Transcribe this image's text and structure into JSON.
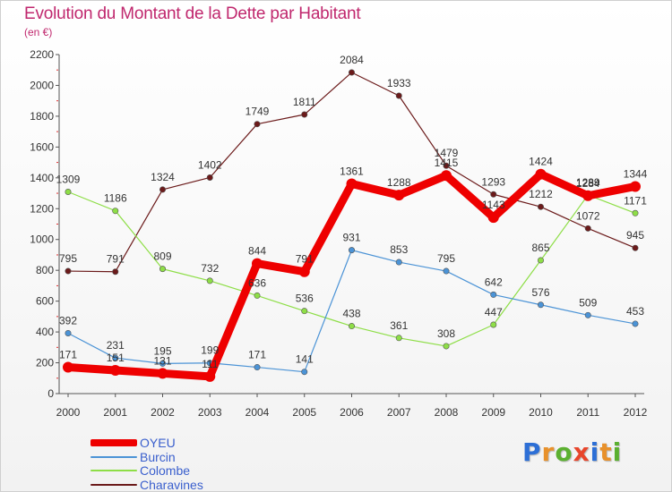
{
  "title": "Evolution du Montant de la Dette par Habitant",
  "subtitle": "(en €)",
  "logo": {
    "text": "Proxiti",
    "colors": [
      "#2d6fd6",
      "#e8912b",
      "#5bb030",
      "#e8452b",
      "#2d6fd6",
      "#e8912b",
      "#5bb030"
    ]
  },
  "chart_data": {
    "type": "line",
    "title": "Evolution du Montant de la Dette par Habitant",
    "subtitle": "(en €)",
    "x": [
      2000,
      2001,
      2002,
      2003,
      2004,
      2005,
      2006,
      2007,
      2008,
      2009,
      2010,
      2011,
      2012
    ],
    "ylim": [
      0,
      2200
    ],
    "yticks": [
      0,
      200,
      400,
      600,
      800,
      1000,
      1200,
      1400,
      1600,
      1800,
      2000,
      2200
    ],
    "grid": false,
    "legend_position": "bottom-left",
    "series": [
      {
        "name": "OYEU",
        "color": "#ee0000",
        "values": [
          171,
          151,
          131,
          111,
          844,
          791,
          1361,
          1288,
          1415,
          1143,
          1424,
          1284,
          1344
        ]
      },
      {
        "name": "Burcin",
        "color": "#4b93d6",
        "values": [
          392,
          231,
          195,
          199,
          171,
          141,
          931,
          853,
          795,
          642,
          576,
          509,
          453
        ]
      },
      {
        "name": "Colombe",
        "color": "#8ede47",
        "values": [
          1309,
          1186,
          809,
          732,
          636,
          536,
          438,
          361,
          308,
          447,
          865,
          1289,
          1171
        ]
      },
      {
        "name": "Charavines",
        "color": "#6b1a1a",
        "values": [
          795,
          791,
          1324,
          1402,
          1749,
          1811,
          2084,
          1933,
          1479,
          1293,
          1212,
          1072,
          945
        ]
      }
    ]
  }
}
